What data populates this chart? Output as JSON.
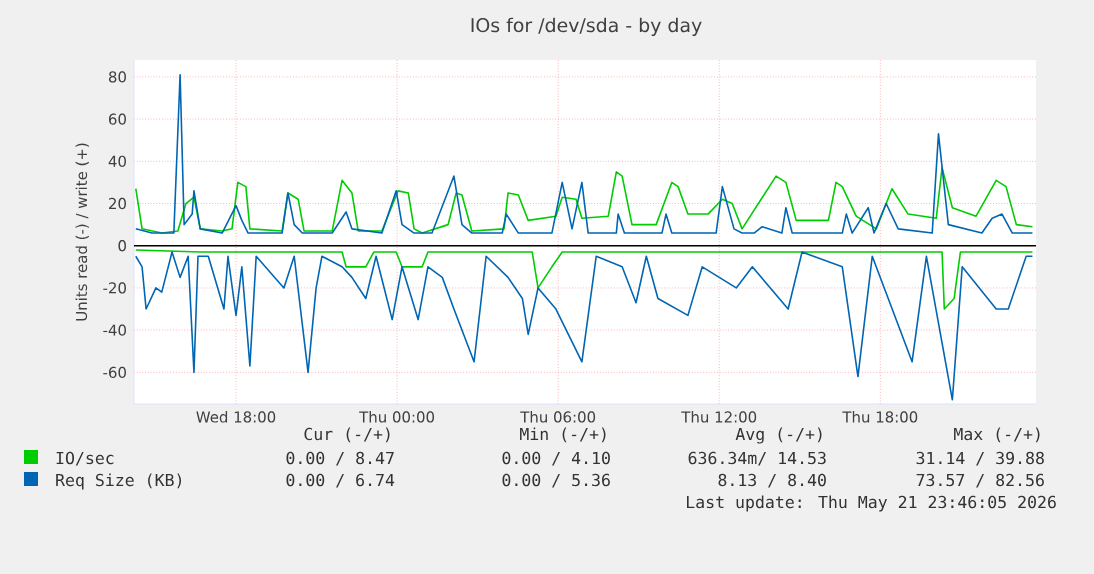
{
  "chart_data": {
    "type": "line",
    "title": "IOs for /dev/sda - by day",
    "ylabel": "Units read (-) / write (+)",
    "xlim": [
      "2026-05-20T14:12",
      "2026-05-21T23:48"
    ],
    "ylim": [
      -75,
      88
    ],
    "xticks": [
      {
        "value": "2026-05-20T18:00",
        "label": "Wed 18:00"
      },
      {
        "value": "2026-05-21T00:00",
        "label": "Thu 00:00"
      },
      {
        "value": "2026-05-21T06:00",
        "label": "Thu 06:00"
      },
      {
        "value": "2026-05-21T12:00",
        "label": "Thu 12:00"
      },
      {
        "value": "2026-05-21T18:00",
        "label": "Thu 18:00"
      }
    ],
    "yticks": [
      -60,
      -40,
      -20,
      0,
      20,
      40,
      60,
      80
    ],
    "grid": true,
    "legend": "bottom",
    "ref_lines": [
      {
        "axis": "y",
        "value": 0,
        "color": "#000000"
      }
    ],
    "series": [
      {
        "name": "IO/sec",
        "color": "#00cc00",
        "x": [
          "2026-05-20T14:16",
          "2026-05-20T14:30",
          "2026-05-20T15:14",
          "2026-05-20T15:50",
          "2026-05-20T16:08",
          "2026-05-20T16:26",
          "2026-05-20T16:40",
          "2026-05-20T17:29",
          "2026-05-20T17:51",
          "2026-05-20T18:04",
          "2026-05-20T18:22",
          "2026-05-20T18:31",
          "2026-05-20T19:43",
          "2026-05-20T19:56",
          "2026-05-20T20:19",
          "2026-05-20T20:32",
          "2026-05-20T21:35",
          "2026-05-20T21:57",
          "2026-05-20T22:19",
          "2026-05-20T22:33",
          "2026-05-20T23:26",
          "2026-05-21T00:02",
          "2026-05-21T00:25",
          "2026-05-21T00:38",
          "2026-05-21T00:56",
          "2026-05-21T01:54",
          "2026-05-21T02:12",
          "2026-05-21T02:25",
          "2026-05-21T02:47",
          "2026-05-21T03:59",
          "2026-05-21T04:08",
          "2026-05-21T04:31",
          "2026-05-21T04:53",
          "2026-05-21T05:55",
          "2026-05-21T06:09",
          "2026-05-21T06:40",
          "2026-05-21T06:53",
          "2026-05-21T07:52",
          "2026-05-21T08:10",
          "2026-05-21T08:23",
          "2026-05-21T08:45",
          "2026-05-21T09:39",
          "2026-05-21T10:14",
          "2026-05-21T10:28",
          "2026-05-21T10:50",
          "2026-05-21T11:35",
          "2026-05-21T12:07",
          "2026-05-21T12:29",
          "2026-05-21T12:51",
          "2026-05-21T14:07",
          "2026-05-21T14:29",
          "2026-05-21T14:52",
          "2026-05-21T16:04",
          "2026-05-21T16:21",
          "2026-05-21T16:35",
          "2026-05-21T17:06",
          "2026-05-21T17:51",
          "2026-05-21T18:26",
          "2026-05-21T19:02",
          "2026-05-21T20:05",
          "2026-05-21T20:18",
          "2026-05-21T20:41",
          "2026-05-21T21:34",
          "2026-05-21T22:19",
          "2026-05-21T22:41",
          "2026-05-21T23:04",
          "2026-05-21T23:40"
        ],
        "values": [
          27,
          8,
          6,
          7,
          20,
          23,
          8,
          7,
          8,
          30,
          28,
          8,
          7,
          25,
          22,
          7,
          7,
          31,
          25,
          7,
          7,
          26,
          25,
          8,
          6,
          10,
          25,
          24,
          7,
          8,
          25,
          24,
          12,
          14,
          23,
          22,
          13,
          14,
          35,
          33,
          10,
          10,
          30,
          28,
          15,
          15,
          22,
          20,
          8,
          33,
          30,
          12,
          12,
          30,
          28,
          14,
          8,
          27,
          15,
          13,
          37,
          18,
          14,
          31,
          28,
          10,
          9
        ]
      },
      {
        "color": "#00cc00",
        "x": [
          "2026-05-20T14:16",
          "2026-05-20T16:40",
          "2026-05-20T21:57",
          "2026-05-20T22:06",
          "2026-05-20T22:50",
          "2026-05-20T23:08",
          "2026-05-20T23:58",
          "2026-05-21T00:11",
          "2026-05-21T00:56",
          "2026-05-21T01:09",
          "2026-05-21T05:02",
          "2026-05-21T05:15",
          "2026-05-21T05:46",
          "2026-05-21T06:09",
          "2026-05-21T18:04",
          "2026-05-21T20:18",
          "2026-05-21T20:23",
          "2026-05-21T20:45",
          "2026-05-21T20:59",
          "2026-05-21T23:40"
        ],
        "values": [
          -2,
          -3,
          -3,
          -10,
          -10,
          -3,
          -3,
          -10,
          -10,
          -3,
          -3,
          -20,
          -10,
          -3,
          -3,
          -3,
          -30,
          -25,
          -3,
          -3
        ]
      },
      {
        "name": "Req Size (KB)",
        "color": "#0066b3",
        "x": [
          "2026-05-20T14:16",
          "2026-05-20T14:52",
          "2026-05-20T15:41",
          "2026-05-20T15:55",
          "2026-05-20T16:04",
          "2026-05-20T16:22",
          "2026-05-20T16:26",
          "2026-05-20T16:40",
          "2026-05-20T17:29",
          "2026-05-20T18:00",
          "2026-05-20T18:13",
          "2026-05-20T18:27",
          "2026-05-20T19:43",
          "2026-05-20T19:56",
          "2026-05-20T20:10",
          "2026-05-20T20:28",
          "2026-05-20T21:35",
          "2026-05-20T22:06",
          "2026-05-20T22:19",
          "2026-05-20T23:26",
          "2026-05-20T23:58",
          "2026-05-21T00:11",
          "2026-05-21T00:38",
          "2026-05-21T01:18",
          "2026-05-21T02:07",
          "2026-05-21T02:25",
          "2026-05-21T02:47",
          "2026-05-21T03:55",
          "2026-05-21T04:04",
          "2026-05-21T04:31",
          "2026-05-21T05:46",
          "2026-05-21T06:09",
          "2026-05-21T06:31",
          "2026-05-21T06:53",
          "2026-05-21T07:07",
          "2026-05-21T08:10",
          "2026-05-21T08:14",
          "2026-05-21T08:28",
          "2026-05-21T09:52",
          "2026-05-21T10:01",
          "2026-05-21T10:14",
          "2026-05-21T11:53",
          "2026-05-21T12:07",
          "2026-05-21T12:33",
          "2026-05-21T12:51",
          "2026-05-21T13:18",
          "2026-05-21T13:36",
          "2026-05-21T14:20",
          "2026-05-21T14:29",
          "2026-05-21T14:43",
          "2026-05-21T16:35",
          "2026-05-21T16:44",
          "2026-05-21T16:57",
          "2026-05-21T17:33",
          "2026-05-21T17:46",
          "2026-05-21T18:13",
          "2026-05-21T18:40",
          "2026-05-21T19:56",
          "2026-05-21T20:10",
          "2026-05-21T20:32",
          "2026-05-21T21:47",
          "2026-05-21T22:10",
          "2026-05-21T22:32",
          "2026-05-21T22:55",
          "2026-05-21T23:40"
        ],
        "values": [
          8,
          6,
          6,
          81,
          10,
          15,
          26,
          8,
          6,
          19,
          12,
          6,
          6,
          25,
          10,
          6,
          6,
          16,
          8,
          6,
          26,
          10,
          6,
          6,
          33,
          10,
          6,
          6,
          15,
          6,
          6,
          30,
          8,
          30,
          6,
          6,
          15,
          6,
          6,
          15,
          6,
          6,
          28,
          8,
          6,
          6,
          9,
          6,
          18,
          6,
          6,
          15,
          6,
          18,
          6,
          20,
          8,
          6,
          53,
          10,
          6,
          13,
          15,
          6,
          6
        ]
      },
      {
        "color": "#0066b3",
        "x": [
          "2026-05-20T14:16",
          "2026-05-20T14:30",
          "2026-05-20T14:39",
          "2026-05-20T15:01",
          "2026-05-20T15:14",
          "2026-05-20T15:37",
          "2026-05-20T15:55",
          "2026-05-20T16:13",
          "2026-05-20T16:26",
          "2026-05-20T16:35",
          "2026-05-20T16:58",
          "2026-05-20T17:33",
          "2026-05-20T17:42",
          "2026-05-20T18:00",
          "2026-05-20T18:13",
          "2026-05-20T18:31",
          "2026-05-20T18:45",
          "2026-05-20T19:47",
          "2026-05-20T20:10",
          "2026-05-20T20:41",
          "2026-05-20T20:59",
          "2026-05-20T21:12",
          "2026-05-20T21:57",
          "2026-05-20T22:19",
          "2026-05-20T22:50",
          "2026-05-20T23:13",
          "2026-05-20T23:49",
          "2026-05-21T00:11",
          "2026-05-21T00:47",
          "2026-05-21T01:09",
          "2026-05-21T01:41",
          "2026-05-21T02:07",
          "2026-05-21T02:52",
          "2026-05-21T03:19",
          "2026-05-21T04:08",
          "2026-05-21T04:40",
          "2026-05-21T04:53",
          "2026-05-21T05:15",
          "2026-05-21T05:55",
          "2026-05-21T06:53",
          "2026-05-21T07:25",
          "2026-05-21T08:23",
          "2026-05-21T08:54",
          "2026-05-21T09:17",
          "2026-05-21T09:43",
          "2026-05-21T10:50",
          "2026-05-21T11:22",
          "2026-05-21T12:38",
          "2026-05-21T13:14",
          "2026-05-21T14:34",
          "2026-05-21T15:05",
          "2026-05-21T16:35",
          "2026-05-21T17:10",
          "2026-05-21T17:42",
          "2026-05-21T19:11",
          "2026-05-21T19:43",
          "2026-05-21T20:41",
          "2026-05-21T21:03",
          "2026-05-21T22:19",
          "2026-05-21T22:46",
          "2026-05-21T23:26",
          "2026-05-21T23:40"
        ],
        "values": [
          -5,
          -10,
          -30,
          -20,
          -22,
          -3,
          -15,
          -5,
          -60,
          -5,
          -5,
          -30,
          -5,
          -33,
          -10,
          -57,
          -5,
          -20,
          -5,
          -60,
          -20,
          -5,
          -10,
          -15,
          -25,
          -5,
          -35,
          -10,
          -35,
          -10,
          -15,
          -30,
          -55,
          -5,
          -15,
          -25,
          -42,
          -20,
          -30,
          -55,
          -5,
          -10,
          -27,
          -5,
          -25,
          -33,
          -10,
          -20,
          -10,
          -30,
          -3,
          -10,
          -62,
          -5,
          -55,
          -5,
          -73,
          -10,
          -30,
          -30,
          -5,
          -5
        ]
      }
    ],
    "annotations": [
      "Cur (-/+)",
      "Min (-/+)",
      "Avg (-/+)",
      "Max (-/+)",
      "0.00 /  8.47",
      "0.00 /  4.10",
      "636.34m/ 14.53",
      "31.14 / 39.88",
      "0.00 /  6.74",
      "0.00 /  5.36",
      "8.13 /  8.40",
      "73.57 / 82.56",
      "Last update: Thu May 21 23:46:05 2026"
    ]
  }
}
